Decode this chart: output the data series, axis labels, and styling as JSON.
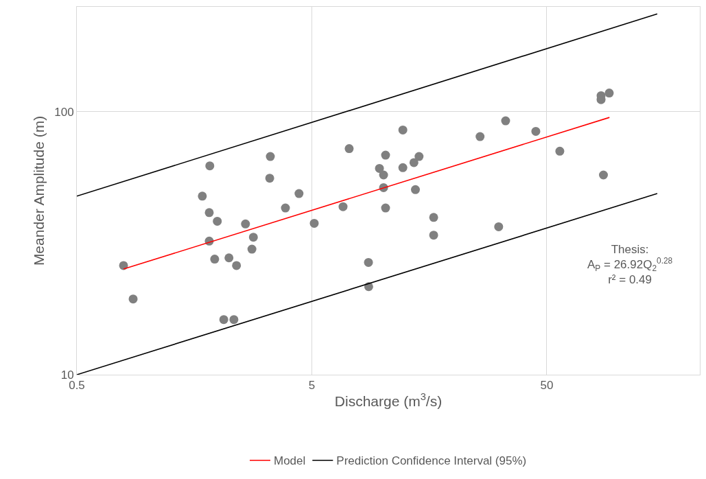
{
  "chart_data": {
    "type": "scatter",
    "xlabel": "Discharge (m$^{3}$/s)",
    "ylabel": "Meander Amplitude (m)",
    "log": "xy",
    "xlim": [
      0.5,
      224
    ],
    "ylim": [
      10,
      250
    ],
    "xticks": [
      0.5,
      5,
      50
    ],
    "yticks": [
      10,
      100
    ],
    "grid": true,
    "legend": "bottom",
    "series": [
      {
        "marker": "circle",
        "color": "#808080",
        "x": [
          0.79,
          0.868,
          1.71,
          1.84,
          1.83,
          1.83,
          1.93,
          1.98,
          2.11,
          2.22,
          2.33,
          2.39,
          2.61,
          2.78,
          2.82,
          3.31,
          3.33,
          3.86,
          4.41,
          5.12,
          6.79,
          7.21,
          8.71,
          8.73,
          9.7,
          10.1,
          10.1,
          10.3,
          10.3,
          12.2,
          12.2,
          13.6,
          13.8,
          14.3,
          16.5,
          16.5,
          26.0,
          31.2,
          33.4,
          44.9,
          56.8,
          85.1,
          85.1,
          92.2,
          87.1
        ],
        "values": [
          26.0,
          19.4,
          47.7,
          62.2,
          41.3,
          32.2,
          27.5,
          38.3,
          16.2,
          27.8,
          16.2,
          26.0,
          37.4,
          30.0,
          33.3,
          55.8,
          67.5,
          43.0,
          48.8,
          37.6,
          43.5,
          72.3,
          26.7,
          21.6,
          60.8,
          57.4,
          51.4,
          68.3,
          43.0,
          85.1,
          61.2,
          64.0,
          50.5,
          67.5,
          39.6,
          33.9,
          80.3,
          36.5,
          92.2,
          84.1,
          70.7,
          114.9,
          111,
          117.6,
          57.4
        ]
      },
      {
        "type": "line",
        "name": "Model",
        "color": "#ff0000",
        "x": [
          0.79,
          92.4
        ],
        "values": [
          25.2,
          95
        ]
      },
      {
        "type": "line",
        "name": "Prediction Confidence Interval (95%)",
        "color": "#000000",
        "x": [
          0.5,
          147.6
        ],
        "values": [
          47.7,
          235
        ]
      },
      {
        "type": "line",
        "color": "#000000",
        "x": [
          0.5,
          147.6
        ],
        "values": [
          10,
          48.8
        ]
      }
    ],
    "annotations": [
      "Thesis:\nA$_{P}$ = 26.92Q$_{2}$$^{0.28}$\nr² = 0.49"
    ]
  }
}
